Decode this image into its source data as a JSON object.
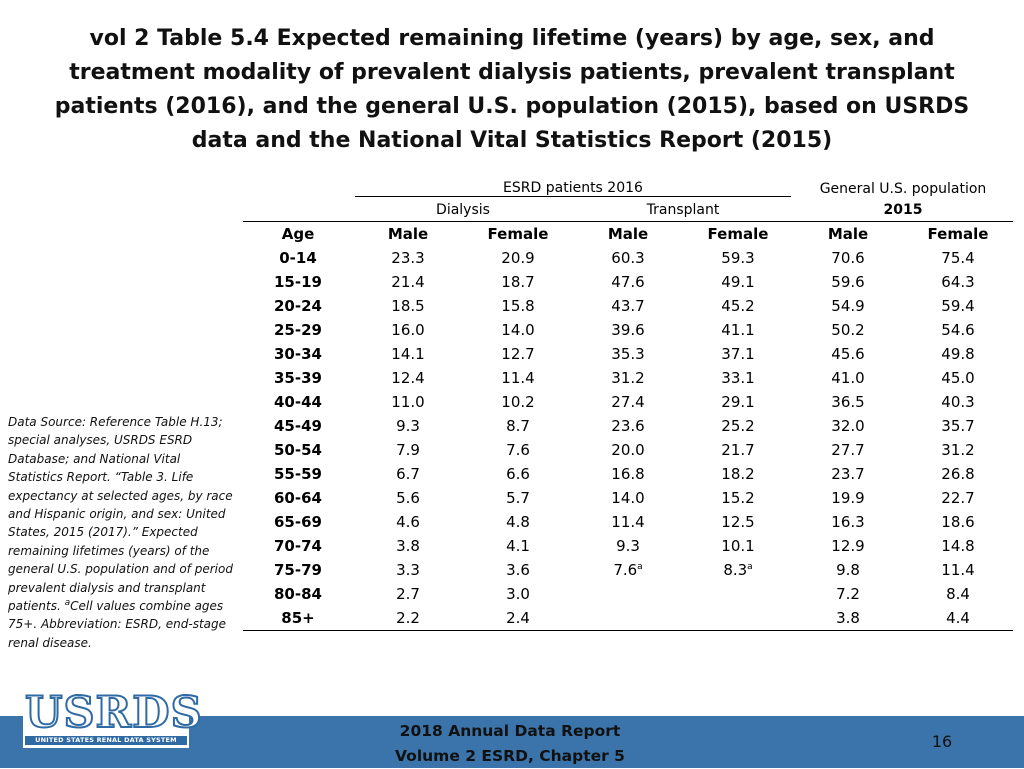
{
  "title": "vol 2 Table 5.4 Expected remaining lifetime (years) by age, sex, and treatment modality of prevalent dialysis patients, prevalent transplant patients (2016), and the general U.S. population (2015), based on USRDS data and the National Vital Statistics Report (2015)",
  "table": {
    "group_esrd": "ESRD patients 2016",
    "group_general_line1": "General U.S. population",
    "group_general_line2": "2015",
    "sub_dialysis": "Dialysis",
    "sub_transplant": "Transplant",
    "columns": [
      "Age",
      "Male",
      "Female",
      "Male",
      "Female",
      "Male",
      "Female"
    ],
    "rows": [
      {
        "age": "0-14",
        "dm": "23.3",
        "df": "20.9",
        "tm": "60.3",
        "tf": "59.3",
        "gm": "70.6",
        "gf": "75.4"
      },
      {
        "age": "15-19",
        "dm": "21.4",
        "df": "18.7",
        "tm": "47.6",
        "tf": "49.1",
        "gm": "59.6",
        "gf": "64.3"
      },
      {
        "age": "20-24",
        "dm": "18.5",
        "df": "15.8",
        "tm": "43.7",
        "tf": "45.2",
        "gm": "54.9",
        "gf": "59.4"
      },
      {
        "age": "25-29",
        "dm": "16.0",
        "df": "14.0",
        "tm": "39.6",
        "tf": "41.1",
        "gm": "50.2",
        "gf": "54.6"
      },
      {
        "age": "30-34",
        "dm": "14.1",
        "df": "12.7",
        "tm": "35.3",
        "tf": "37.1",
        "gm": "45.6",
        "gf": "49.8"
      },
      {
        "age": "35-39",
        "dm": "12.4",
        "df": "11.4",
        "tm": "31.2",
        "tf": "33.1",
        "gm": "41.0",
        "gf": "45.0"
      },
      {
        "age": "40-44",
        "dm": "11.0",
        "df": "10.2",
        "tm": "27.4",
        "tf": "29.1",
        "gm": "36.5",
        "gf": "40.3"
      },
      {
        "age": "45-49",
        "dm": "9.3",
        "df": "8.7",
        "tm": "23.6",
        "tf": "25.2",
        "gm": "32.0",
        "gf": "35.7"
      },
      {
        "age": "50-54",
        "dm": "7.9",
        "df": "7.6",
        "tm": "20.0",
        "tf": "21.7",
        "gm": "27.7",
        "gf": "31.2"
      },
      {
        "age": "55-59",
        "dm": "6.7",
        "df": "6.6",
        "tm": "16.8",
        "tf": "18.2",
        "gm": "23.7",
        "gf": "26.8"
      },
      {
        "age": "60-64",
        "dm": "5.6",
        "df": "5.7",
        "tm": "14.0",
        "tf": "15.2",
        "gm": "19.9",
        "gf": "22.7"
      },
      {
        "age": "65-69",
        "dm": "4.6",
        "df": "4.8",
        "tm": "11.4",
        "tf": "12.5",
        "gm": "16.3",
        "gf": "18.6"
      },
      {
        "age": "70-74",
        "dm": "3.8",
        "df": "4.1",
        "tm": "9.3",
        "tf": "10.1",
        "gm": "12.9",
        "gf": "14.8"
      },
      {
        "age": "75-79",
        "dm": "3.3",
        "df": "3.6",
        "tm": "7.6",
        "tf": "8.3",
        "gm": "9.8",
        "gf": "11.4",
        "tm_sup": "a",
        "tf_sup": "a"
      },
      {
        "age": "80-84",
        "dm": "2.7",
        "df": "3.0",
        "tm": "",
        "tf": "",
        "gm": "7.2",
        "gf": "8.4"
      },
      {
        "age": "85+",
        "dm": "2.2",
        "df": "2.4",
        "tm": "",
        "tf": "",
        "gm": "3.8",
        "gf": "4.4"
      }
    ]
  },
  "source": {
    "text_before": "Data Source: Reference Table H.13; special analyses, USRDS ESRD Database; and National Vital Statistics Report. “Table 3. Life expectancy at selected ages, by race and Hispanic origin, and sex: United States, 2015 (2017).” Expected remaining lifetimes (years) of the general U.S. population and of period prevalent dialysis and transplant patients. ",
    "sup": "a",
    "text_after": "Cell values combine ages 75+. Abbreviation: ESRD, end-stage renal disease."
  },
  "logo": {
    "text": "USRDS",
    "subtitle": "UNITED STATES RENAL DATA SYSTEM"
  },
  "footer": {
    "line1": "2018 Annual Data Report",
    "line2": "Volume 2 ESRD, Chapter 5",
    "page": "16"
  },
  "colors": {
    "footer_bar": "#3a74aa",
    "logo_blue": "#2f6aa5"
  }
}
